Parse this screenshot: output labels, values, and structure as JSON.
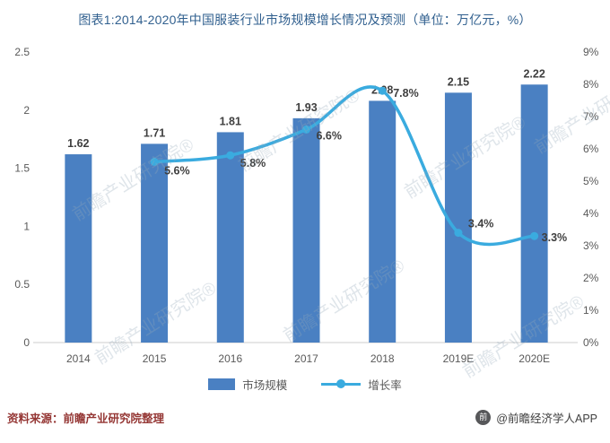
{
  "title": "图表1:2014-2020年中国服装行业市场规模增长情况及预测（单位：万亿元，%）",
  "chart_data": {
    "type": "bar+line",
    "categories": [
      "2014",
      "2015",
      "2016",
      "2017",
      "2018",
      "2019E",
      "2020E"
    ],
    "series": [
      {
        "name": "市场规模",
        "type": "bar",
        "axis": "left",
        "color": "#4a80c2",
        "values": [
          1.62,
          1.71,
          1.81,
          1.93,
          2.08,
          2.15,
          2.22
        ],
        "labels": [
          "1.62",
          "1.71",
          "1.81",
          "1.93",
          "2.08",
          "2.15",
          "2.22"
        ]
      },
      {
        "name": "增长率",
        "type": "line",
        "axis": "right",
        "color": "#3aabdf",
        "values": [
          null,
          5.6,
          5.8,
          6.6,
          7.8,
          3.4,
          3.3
        ],
        "labels": [
          "",
          "5.6%",
          "5.8%",
          "6.6%",
          "7.8%",
          "3.4%",
          "3.3%"
        ]
      }
    ],
    "left_axis": {
      "min": 0,
      "max": 2.5,
      "step": 0.5,
      "ticks": [
        "0",
        "0.5",
        "1",
        "1.5",
        "2",
        "2.5"
      ]
    },
    "right_axis": {
      "min": 0,
      "max": 9,
      "step": 1,
      "ticks": [
        "0%",
        "1%",
        "2%",
        "3%",
        "4%",
        "5%",
        "6%",
        "7%",
        "8%",
        "9%"
      ]
    },
    "legend": [
      "市场规模",
      "增长率"
    ],
    "grid": false,
    "legend_position": "bottom"
  },
  "watermark": {
    "text": "前瞻产业研究院®"
  },
  "footer": {
    "source": "资料来源：前瞻产业研究院整理",
    "credit": "@前瞻经济学人APP",
    "credit_icon_glyph": "前"
  }
}
